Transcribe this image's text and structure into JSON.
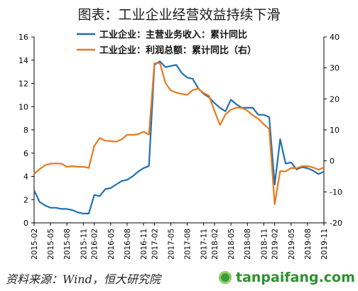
{
  "page_title": "图表：工业企业经营效益持续下滑",
  "source": "资料来源：Wind，恒大研究院",
  "brand": "tanpaifang.com",
  "chart_data": {
    "type": "line",
    "title": "图表：工业企业经营效益持续下滑",
    "x": [
      "2015-02",
      "2015-03",
      "2015-04",
      "2015-05",
      "2015-06",
      "2015-07",
      "2015-08",
      "2015-09",
      "2015-10",
      "2015-11",
      "2015-12",
      "2016-02",
      "2016-03",
      "2016-04",
      "2016-05",
      "2016-06",
      "2016-07",
      "2016-08",
      "2016-09",
      "2016-10",
      "2016-11",
      "2016-12",
      "2017-02",
      "2017-03",
      "2017-04",
      "2017-05",
      "2017-06",
      "2017-07",
      "2017-08",
      "2017-09",
      "2017-10",
      "2017-11",
      "2017-12",
      "2018-02",
      "2018-03",
      "2018-04",
      "2018-05",
      "2018-06",
      "2018-07",
      "2018-08",
      "2018-09",
      "2018-10",
      "2018-11",
      "2018-12",
      "2019-02",
      "2019-03",
      "2019-04",
      "2019-05",
      "2019-06",
      "2019-07",
      "2019-08",
      "2019-09",
      "2019-10",
      "2019-11"
    ],
    "x_tick_labels": [
      "2015-02",
      "2015-05",
      "2015-08",
      "2015-11",
      "2016-02",
      "2016-05",
      "2016-08",
      "2016-11",
      "2017-02",
      "2017-05",
      "2017-08",
      "2017-11",
      "2018-02",
      "2018-05",
      "2018-08",
      "2018-11",
      "2019-02",
      "2019-05",
      "2019-08",
      "2019-11"
    ],
    "series": [
      {
        "name": "工业企业：主营业务收入：累计同比",
        "axis": "left",
        "color": "#1f6fb4",
        "values": [
          2.8,
          1.8,
          1.5,
          1.3,
          1.3,
          1.2,
          1.2,
          1.1,
          0.9,
          0.8,
          0.8,
          2.4,
          2.3,
          2.9,
          3.0,
          3.3,
          3.6,
          3.7,
          4.0,
          4.4,
          4.7,
          4.9,
          13.6,
          13.9,
          13.4,
          13.5,
          13.6,
          12.9,
          12.5,
          12.4,
          11.6,
          11.1,
          10.8,
          10.3,
          9.9,
          9.6,
          10.6,
          10.2,
          9.9,
          9.9,
          9.9,
          9.3,
          9.3,
          9.1,
          3.3,
          7.2,
          5.1,
          5.2,
          4.6,
          4.8,
          4.7,
          4.5,
          4.2,
          4.4
        ]
      },
      {
        "name": "工业企业：利润总额：累计同比（右）",
        "axis": "right",
        "color": "#e8791e",
        "values": [
          -4.2,
          -2.7,
          -1.4,
          -0.9,
          -0.8,
          -0.9,
          -1.9,
          -1.7,
          -1.9,
          -1.9,
          -2.3,
          4.8,
          7.4,
          6.5,
          6.4,
          6.2,
          6.9,
          8.4,
          8.4,
          8.6,
          9.4,
          8.5,
          31.5,
          31.6,
          25.2,
          22.7,
          22.0,
          21.6,
          21.3,
          22.8,
          23.3,
          21.9,
          21.0,
          16.1,
          11.6,
          15.0,
          16.5,
          17.2,
          17.1,
          16.2,
          14.7,
          13.6,
          11.8,
          10.3,
          -14.0,
          -3.3,
          -3.4,
          -2.3,
          -2.4,
          -1.7,
          -1.7,
          -2.1,
          -2.9,
          -2.1
        ]
      }
    ],
    "y_left": {
      "min": 0,
      "max": 16,
      "ticks": [
        0,
        2,
        4,
        6,
        8,
        10,
        12,
        14,
        16
      ]
    },
    "y_right": {
      "min": -20,
      "max": 40,
      "ticks": [
        -20,
        -10,
        0,
        10,
        20,
        30,
        40
      ]
    },
    "legend_position": "top-left",
    "grid": false
  }
}
